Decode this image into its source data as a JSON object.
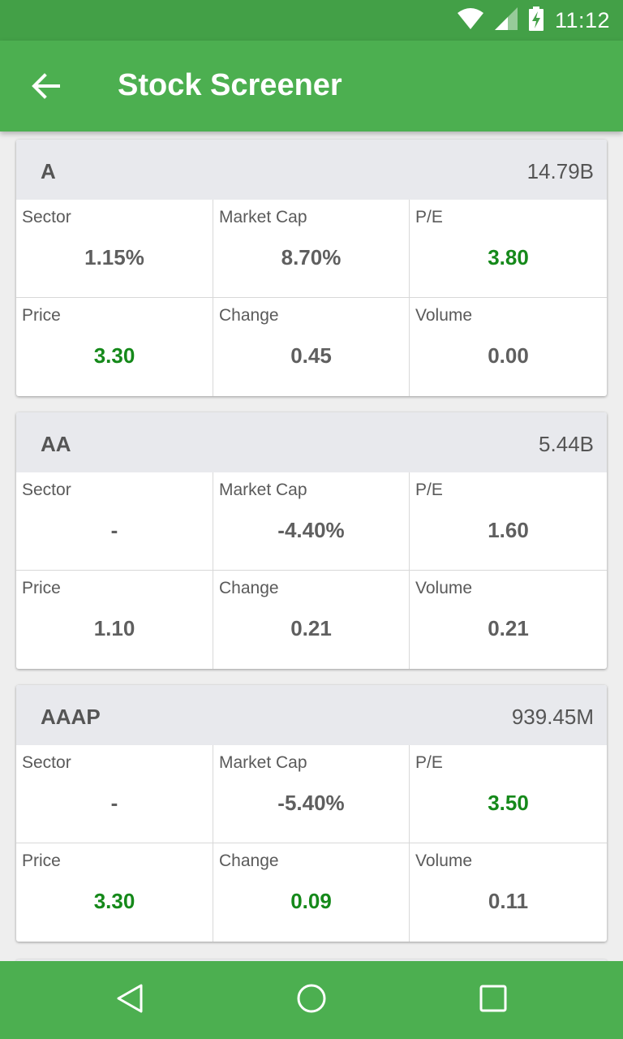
{
  "status_bar": {
    "time": "11:12",
    "icons": [
      "wifi-icon",
      "signal-icon",
      "battery-charging-icon"
    ]
  },
  "app_bar": {
    "title": "Stock Screener",
    "back_icon": "arrow-left-icon"
  },
  "colors": {
    "primary": "#4caf50",
    "primary_dark": "#43a047",
    "positive": "#15891a",
    "neutral": "#5f5f5f",
    "card_header": "#e8e9ed"
  },
  "stocks": [
    {
      "ticker": "A",
      "market_cap": "14.79B",
      "cells": [
        {
          "label": "Sector",
          "value": "1.15%",
          "positive": false
        },
        {
          "label": "Market Cap",
          "value": "8.70%",
          "positive": false
        },
        {
          "label": "P/E",
          "value": "3.80",
          "positive": true
        },
        {
          "label": "Price",
          "value": "3.30",
          "positive": true
        },
        {
          "label": "Change",
          "value": "0.45",
          "positive": false
        },
        {
          "label": "Volume",
          "value": "0.00",
          "positive": false
        }
      ]
    },
    {
      "ticker": "AA",
      "market_cap": "5.44B",
      "cells": [
        {
          "label": "Sector",
          "value": "-",
          "positive": false
        },
        {
          "label": "Market Cap",
          "value": "-4.40%",
          "positive": false
        },
        {
          "label": "P/E",
          "value": "1.60",
          "positive": false
        },
        {
          "label": "Price",
          "value": "1.10",
          "positive": false
        },
        {
          "label": "Change",
          "value": "0.21",
          "positive": false
        },
        {
          "label": "Volume",
          "value": "0.21",
          "positive": false
        }
      ]
    },
    {
      "ticker": "AAAP",
      "market_cap": "939.45M",
      "cells": [
        {
          "label": "Sector",
          "value": "-",
          "positive": false
        },
        {
          "label": "Market Cap",
          "value": "-5.40%",
          "positive": false
        },
        {
          "label": "P/E",
          "value": "3.50",
          "positive": true
        },
        {
          "label": "Price",
          "value": "3.30",
          "positive": true
        },
        {
          "label": "Change",
          "value": "0.09",
          "positive": true
        },
        {
          "label": "Volume",
          "value": "0.11",
          "positive": false
        }
      ]
    }
  ],
  "nav_bar": {
    "buttons": [
      "back-triangle-icon",
      "home-circle-icon",
      "recents-square-icon"
    ]
  }
}
